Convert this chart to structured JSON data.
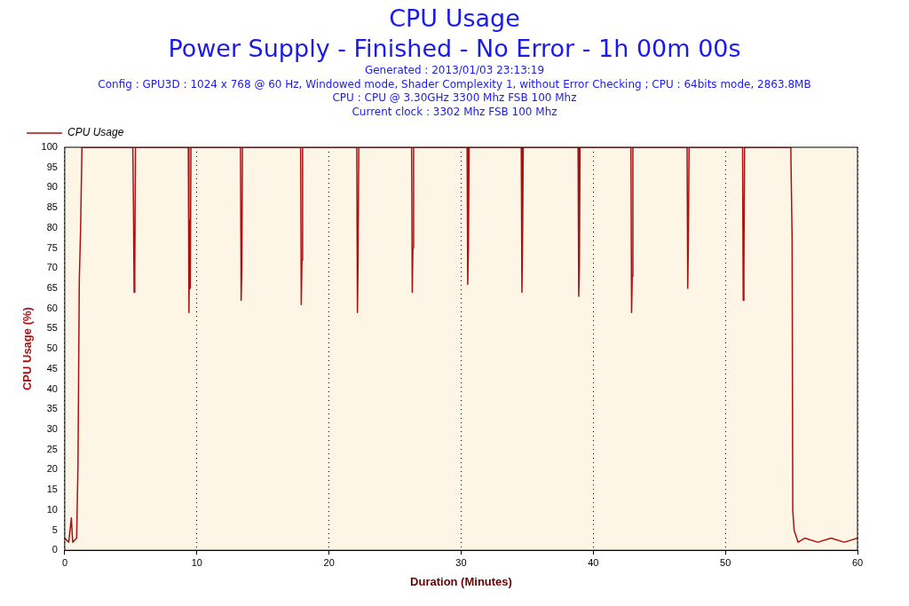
{
  "chart_data": {
    "type": "line",
    "title": "CPU Usage",
    "subtitle": "Power Supply - Finished - No Error - 1h 00m 00s",
    "annotations": [
      "Generated : 2013/01/03 23:13:19",
      "Config : GPU3D : 1024 x 768 @ 60 Hz, Windowed mode, Shader Complexity 1, without Error Checking ; CPU : 64bits mode, 2863.8MB",
      "CPU : CPU @ 3.30GHz 3300 Mhz FSB 100 Mhz",
      "Current clock : 3302 Mhz FSB 100 Mhz"
    ],
    "xlabel": "Duration (Minutes)",
    "ylabel": "CPU Usage (%)",
    "series": [
      {
        "name": "CPU Usage",
        "color": "#aa1111",
        "x": [
          0,
          0.3,
          0.5,
          0.6,
          0.9,
          1.0,
          1.1,
          1.2,
          1.3,
          5.15,
          5.2,
          5.25,
          5.3,
          5.35,
          9.35,
          9.4,
          9.45,
          9.5,
          9.55,
          13.3,
          13.35,
          13.4,
          13.45,
          17.85,
          17.9,
          17.95,
          18.0,
          22.1,
          22.15,
          22.2,
          22.25,
          26.25,
          26.3,
          26.35,
          26.4,
          30.45,
          30.5,
          30.55,
          30.6,
          34.55,
          34.6,
          34.65,
          34.7,
          38.85,
          38.9,
          38.95,
          39.0,
          42.85,
          42.9,
          42.95,
          43.0,
          47.1,
          47.15,
          47.2,
          47.25,
          51.3,
          51.35,
          51.4,
          51.45,
          54.95,
          55.05,
          55.1,
          55.2,
          55.5,
          56,
          57,
          58,
          59,
          60
        ],
        "values": [
          3,
          2,
          8,
          2,
          3,
          21,
          67,
          80,
          100,
          100,
          85,
          64,
          70,
          100,
          100,
          59,
          82,
          65,
          100,
          100,
          62,
          70,
          100,
          100,
          61,
          72,
          100,
          100,
          59,
          72,
          100,
          100,
          64,
          75,
          100,
          100,
          66,
          75,
          100,
          100,
          64,
          77,
          100,
          100,
          63,
          70,
          100,
          100,
          59,
          68,
          100,
          100,
          65,
          77,
          100,
          100,
          62,
          71,
          100,
          100,
          77,
          10,
          5,
          2,
          3,
          2,
          3,
          2,
          3
        ]
      }
    ],
    "xlim": [
      0,
      60
    ],
    "xticks": [
      0,
      10,
      20,
      30,
      40,
      50,
      60
    ],
    "ylim": [
      0,
      100
    ],
    "yticks": [
      0,
      5,
      10,
      15,
      20,
      25,
      30,
      35,
      40,
      45,
      50,
      55,
      60,
      65,
      70,
      75,
      80,
      85,
      90,
      95,
      100
    ],
    "grid": "x",
    "legend": "top left",
    "marker": "none",
    "line_style": "solid"
  }
}
